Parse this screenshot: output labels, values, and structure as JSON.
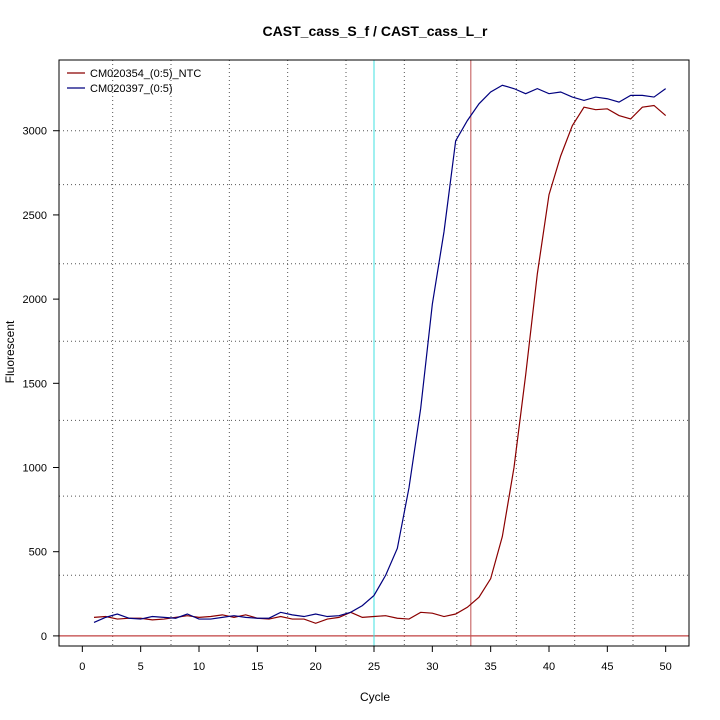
{
  "chart_data": {
    "type": "line",
    "title": "CAST_cass_S_f / CAST_cass_L_r",
    "xlabel": "Cycle",
    "ylabel": "Fluorescent",
    "xlim": [
      -2,
      52
    ],
    "ylim": [
      -60,
      3420
    ],
    "xticks": [
      0,
      5,
      10,
      15,
      20,
      25,
      30,
      35,
      40,
      45,
      50
    ],
    "yticks": [
      0,
      500,
      1000,
      1500,
      2000,
      2500,
      3000
    ],
    "x_grid": [
      2.6,
      7.6,
      12.6,
      17.6,
      22.6,
      27.6,
      32.1,
      37.2,
      42.2,
      47.2
    ],
    "y_grid": [
      3000,
      2680,
      2210,
      1750,
      1280,
      830,
      360
    ],
    "grid": true,
    "legend_position": "top-left",
    "vlines": [
      {
        "x": 25,
        "color": "#40E0E0"
      },
      {
        "x": 33.3,
        "color": "#C05050"
      }
    ],
    "hline": {
      "y": 0,
      "color": "#C04040"
    },
    "series": [
      {
        "name": "CM020354_(0:5)_NTC",
        "color": "#8B0000",
        "x": [
          1,
          2,
          3,
          4,
          5,
          6,
          7,
          8,
          9,
          10,
          11,
          12,
          13,
          14,
          15,
          16,
          17,
          18,
          19,
          20,
          21,
          22,
          23,
          24,
          25,
          26,
          27,
          28,
          29,
          30,
          31,
          32,
          33,
          34,
          35,
          36,
          37,
          38,
          39,
          40,
          41,
          42,
          43,
          44,
          45,
          46,
          47,
          48,
          49,
          50
        ],
        "values": [
          110,
          115,
          100,
          105,
          105,
          95,
          100,
          110,
          120,
          110,
          115,
          125,
          110,
          125,
          105,
          100,
          115,
          100,
          100,
          75,
          100,
          110,
          140,
          110,
          115,
          120,
          105,
          100,
          140,
          135,
          115,
          130,
          170,
          230,
          340,
          590,
          1000,
          1550,
          2150,
          2620,
          2850,
          3030,
          3140,
          3125,
          3130,
          3090,
          3070,
          3140,
          3150,
          3090
        ]
      },
      {
        "name": "CM020397_(0:5)",
        "color": "#00007F",
        "x": [
          1,
          2,
          3,
          4,
          5,
          6,
          7,
          8,
          9,
          10,
          11,
          12,
          13,
          14,
          15,
          16,
          17,
          18,
          19,
          20,
          21,
          22,
          23,
          24,
          25,
          26,
          27,
          28,
          29,
          30,
          31,
          32,
          33,
          34,
          35,
          36,
          37,
          38,
          39,
          40,
          41,
          42,
          43,
          44,
          45,
          46,
          47,
          48,
          49,
          50
        ],
        "values": [
          80,
          110,
          130,
          105,
          100,
          115,
          110,
          105,
          130,
          100,
          100,
          110,
          120,
          110,
          105,
          105,
          140,
          125,
          115,
          130,
          115,
          120,
          140,
          180,
          240,
          360,
          520,
          880,
          1350,
          1970,
          2400,
          2940,
          3060,
          3160,
          3230,
          3270,
          3250,
          3220,
          3250,
          3220,
          3230,
          3200,
          3180,
          3200,
          3190,
          3170,
          3210,
          3210,
          3200,
          3250
        ]
      }
    ]
  }
}
